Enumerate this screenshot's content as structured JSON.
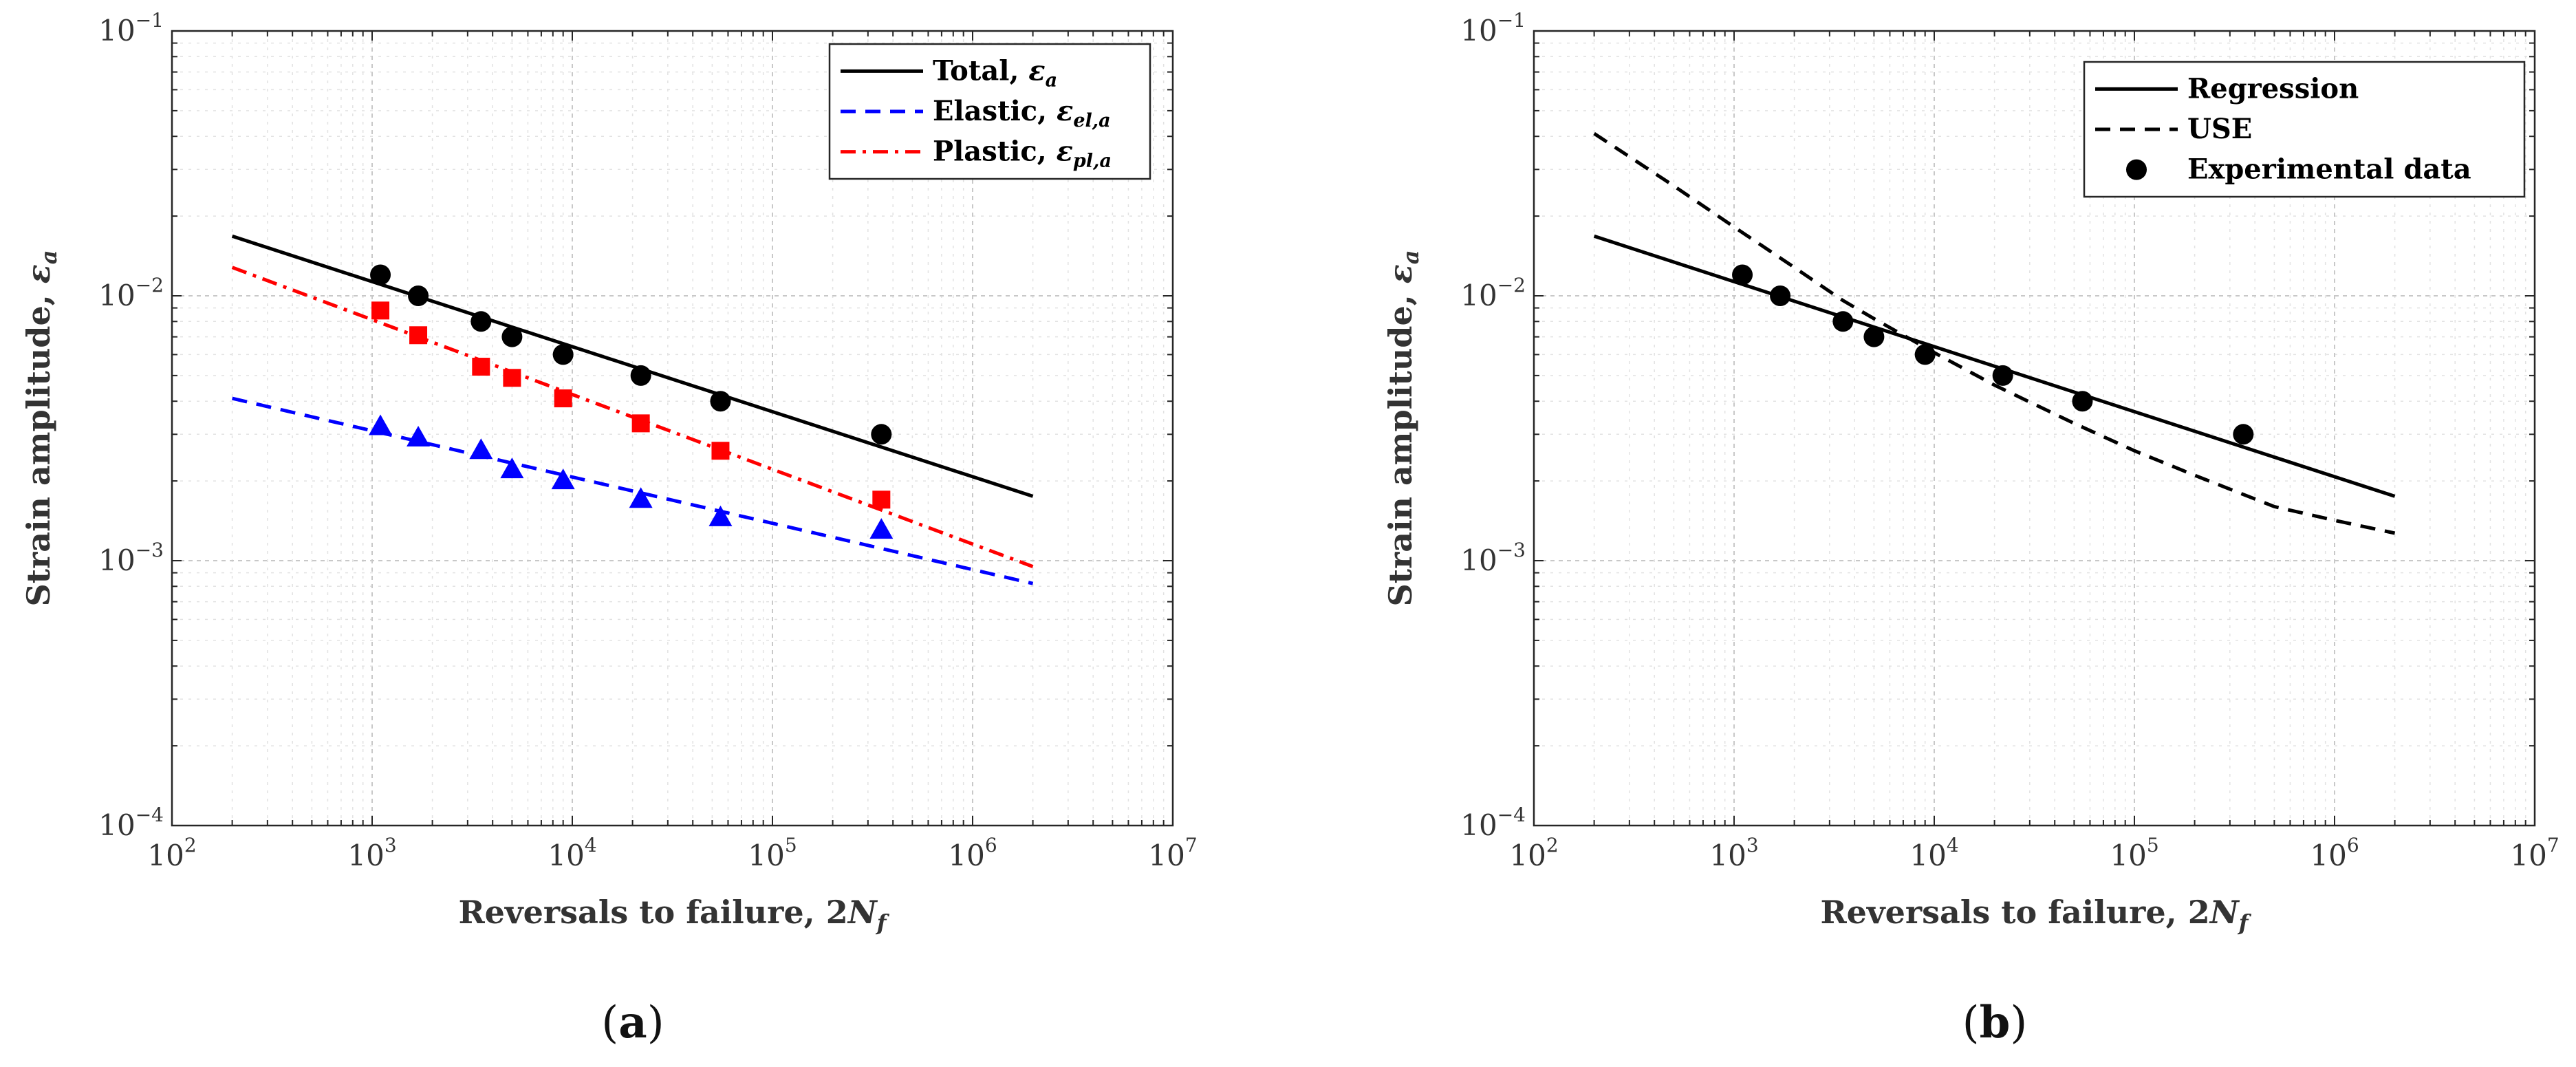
{
  "chart_data": [
    {
      "panel_label": "a",
      "type": "line",
      "xscale": "log",
      "yscale": "log",
      "xlim": [
        100,
        10000000
      ],
      "ylim": [
        0.0001,
        0.1
      ],
      "grid": true,
      "legend_position": "top-right",
      "xlabel": "Reversals to failure, 2",
      "xlabel_symbol": "N",
      "xlabel_sub": "f",
      "ylabel": "Strain amplitude, ",
      "ylabel_symbol": "ε",
      "ylabel_sub": "a",
      "x_ticks": [
        {
          "value": 100,
          "base": "10",
          "exp": "2"
        },
        {
          "value": 1000,
          "base": "10",
          "exp": "3"
        },
        {
          "value": 10000,
          "base": "10",
          "exp": "4"
        },
        {
          "value": 100000,
          "base": "10",
          "exp": "5"
        },
        {
          "value": 1000000,
          "base": "10",
          "exp": "6"
        },
        {
          "value": 10000000,
          "base": "10",
          "exp": "7"
        }
      ],
      "y_ticks": [
        {
          "value": 0.0001,
          "base": "10",
          "exp": "−4"
        },
        {
          "value": 0.001,
          "base": "10",
          "exp": "−3"
        },
        {
          "value": 0.01,
          "base": "10",
          "exp": "−2"
        },
        {
          "value": 0.1,
          "base": "10",
          "exp": "−1"
        }
      ],
      "series": [
        {
          "name": "Total, ",
          "symbol": "ε",
          "sub": "a",
          "kind": "line",
          "style": "solid",
          "color": "#000000",
          "x": [
            200,
            2000000
          ],
          "y": [
            0.0168,
            0.00175
          ]
        },
        {
          "name": "Elastic, ",
          "symbol": "ε",
          "sub": "el,a",
          "kind": "line",
          "style": "dashed",
          "color": "#0000ff",
          "x": [
            200,
            2000000
          ],
          "y": [
            0.0041,
            0.00082
          ]
        },
        {
          "name": "Plastic, ",
          "symbol": "ε",
          "sub": "pl,a",
          "kind": "line",
          "style": "dashdot",
          "color": "#ff0000",
          "x": [
            200,
            2000000
          ],
          "y": [
            0.0128,
            0.00095
          ]
        },
        {
          "kind": "scatter",
          "marker": "circle",
          "color": "#000000",
          "x": [
            1100,
            1700,
            3500,
            5000,
            9000,
            22000,
            55000,
            350000
          ],
          "y": [
            0.012,
            0.01,
            0.008,
            0.007,
            0.006,
            0.005,
            0.004,
            0.003
          ]
        },
        {
          "kind": "scatter",
          "marker": "square",
          "color": "#ff0000",
          "x": [
            1100,
            1700,
            3500,
            5000,
            9000,
            22000,
            55000,
            350000
          ],
          "y": [
            0.0088,
            0.0071,
            0.0054,
            0.0049,
            0.0041,
            0.0033,
            0.0026,
            0.0017
          ]
        },
        {
          "kind": "scatter",
          "marker": "triangle",
          "color": "#0000ff",
          "x": [
            1100,
            1700,
            3500,
            5000,
            9000,
            22000,
            55000,
            350000
          ],
          "y": [
            0.0032,
            0.0029,
            0.0026,
            0.0022,
            0.002,
            0.0017,
            0.00145,
            0.0013
          ]
        }
      ]
    },
    {
      "panel_label": "b",
      "type": "line",
      "xscale": "log",
      "yscale": "log",
      "xlim": [
        100,
        10000000
      ],
      "ylim": [
        0.0001,
        0.1
      ],
      "grid": true,
      "legend_position": "top-right",
      "xlabel": "Reversals to failure, 2",
      "xlabel_symbol": "N",
      "xlabel_sub": "f",
      "ylabel": "Strain amplitude, ",
      "ylabel_symbol": "ε",
      "ylabel_sub": "a",
      "x_ticks": [
        {
          "value": 100,
          "base": "10",
          "exp": "2"
        },
        {
          "value": 1000,
          "base": "10",
          "exp": "3"
        },
        {
          "value": 10000,
          "base": "10",
          "exp": "4"
        },
        {
          "value": 100000,
          "base": "10",
          "exp": "5"
        },
        {
          "value": 1000000,
          "base": "10",
          "exp": "6"
        },
        {
          "value": 10000000,
          "base": "10",
          "exp": "7"
        }
      ],
      "y_ticks": [
        {
          "value": 0.0001,
          "base": "10",
          "exp": "−4"
        },
        {
          "value": 0.001,
          "base": "10",
          "exp": "−3"
        },
        {
          "value": 0.01,
          "base": "10",
          "exp": "−2"
        },
        {
          "value": 0.1,
          "base": "10",
          "exp": "−1"
        }
      ],
      "series": [
        {
          "name": "Regression",
          "kind": "line",
          "style": "solid",
          "color": "#000000",
          "x": [
            200,
            2000000
          ],
          "y": [
            0.0168,
            0.00175
          ]
        },
        {
          "name": "USE",
          "kind": "line",
          "style": "dashed",
          "color": "#000000",
          "x": [
            200,
            500,
            1000,
            2000,
            3500,
            5000,
            10000,
            20000,
            50000,
            100000,
            200000,
            500000,
            1000000,
            2000000
          ],
          "y": [
            0.041,
            0.026,
            0.0182,
            0.0128,
            0.0096,
            0.0082,
            0.0061,
            0.0046,
            0.0033,
            0.0026,
            0.0021,
            0.0016,
            0.00142,
            0.00127
          ]
        },
        {
          "name": "Experimental data",
          "kind": "scatter",
          "marker": "circle",
          "color": "#000000",
          "x": [
            1100,
            1700,
            3500,
            5000,
            9000,
            22000,
            55000,
            350000
          ],
          "y": [
            0.012,
            0.01,
            0.008,
            0.007,
            0.006,
            0.005,
            0.004,
            0.003
          ]
        }
      ]
    }
  ]
}
